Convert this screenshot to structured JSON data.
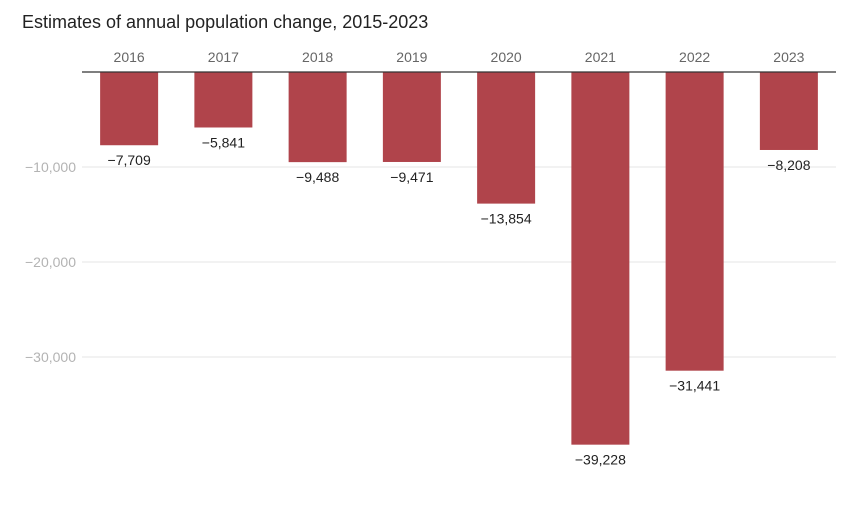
{
  "chart_data": {
    "type": "bar",
    "title": "Estimates of annual population change, 2015-2023",
    "xlabel": "",
    "ylabel": "",
    "categories": [
      "2016",
      "2017",
      "2018",
      "2019",
      "2020",
      "2021",
      "2022",
      "2023"
    ],
    "values": [
      -7709,
      -5841,
      -9488,
      -9471,
      -13854,
      -39228,
      -31441,
      -8208
    ],
    "data_labels": [
      "−7,709",
      "−5,841",
      "−9,488",
      "−9,471",
      "−13,854",
      "−39,228",
      "−31,441",
      "−8,208"
    ],
    "y_ticks": [
      -10000,
      -20000,
      -30000
    ],
    "y_tick_labels": [
      "−10,000",
      "−20,000",
      "−30,000"
    ],
    "ylim": [
      -42000,
      0
    ],
    "grid": true,
    "legend": "none",
    "category_axis_position": "top",
    "bar_color": "#b0444b"
  }
}
